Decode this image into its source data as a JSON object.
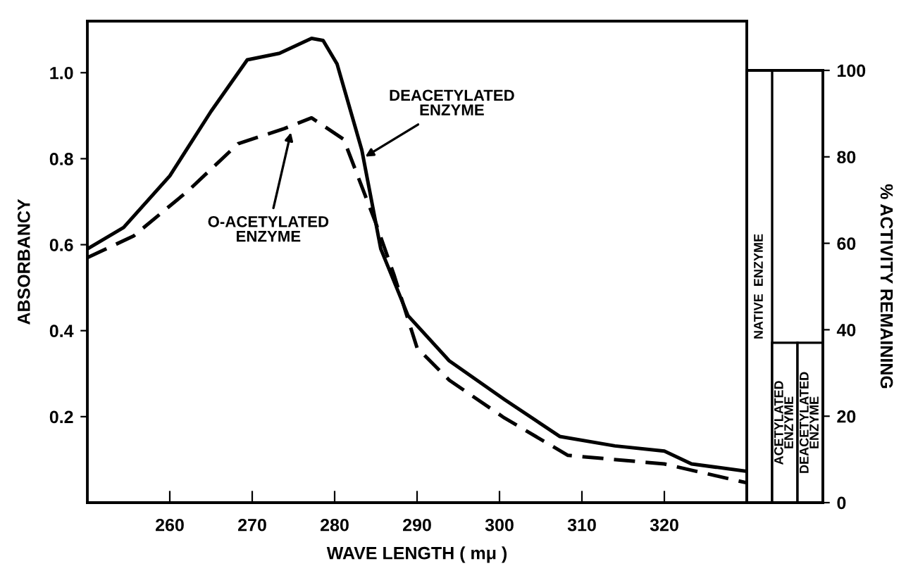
{
  "chart_data": [
    {
      "type": "line",
      "xlabel": "WAVE LENGTH ( mμ )",
      "ylabel": "ABSORBANCY",
      "xlim": [
        250,
        330
      ],
      "ylim": [
        0,
        1.12
      ],
      "xticks": [
        260,
        270,
        280,
        290,
        300,
        310,
        320
      ],
      "yticks": [
        0.2,
        0.4,
        0.6,
        0.8,
        {
          "value": 1.0,
          "label": "1.0"
        }
      ],
      "grid": false,
      "legend": false,
      "series": [
        {
          "color": "#000000",
          "line_style": "solid",
          "x": [
            250,
            254.4,
            260,
            265,
            269.4,
            273.3,
            277.2,
            278.6,
            280.3,
            283.3,
            285.6,
            288.9,
            293.9,
            300.6,
            307.3,
            314,
            320,
            323.3,
            330
          ],
          "values": [
            0.59,
            0.64,
            0.76,
            0.91,
            1.03,
            1.045,
            1.08,
            1.075,
            1.02,
            0.82,
            0.59,
            0.435,
            0.33,
            0.24,
            0.154,
            0.132,
            0.12,
            0.09,
            0.073
          ]
        },
        {
          "color": "#000000",
          "line_style": "dashed",
          "x": [
            250,
            255.6,
            262.2,
            268.3,
            273.9,
            277.2,
            281.1,
            285,
            287.2,
            290,
            293.9,
            300.6,
            308.3,
            320,
            330
          ],
          "values": [
            0.57,
            0.62,
            0.725,
            0.835,
            0.87,
            0.895,
            0.845,
            0.65,
            0.53,
            0.36,
            0.285,
            0.197,
            0.11,
            0.09,
            0.046
          ]
        }
      ],
      "annotations": [
        {
          "text": "DEACETYLATED\nENZYME",
          "x": 283.3,
          "y": 0.8
        },
        {
          "text": "O-ACETYLATED\nENZYME",
          "x": 274.8,
          "y": 0.87
        }
      ]
    },
    {
      "type": "bar",
      "ylabel": "% ACTIVITY REMAINING",
      "categories": [
        "NATIVE  ENZYME",
        "ACETYLATED\nENZYME",
        "DEACETYLATED\nENZYME"
      ],
      "values": [
        100,
        37,
        37
      ],
      "color": "#ffffff",
      "ylim": [
        0,
        100
      ],
      "yticks": [
        0,
        20,
        40,
        60,
        80,
        100
      ],
      "grid": false
    }
  ]
}
